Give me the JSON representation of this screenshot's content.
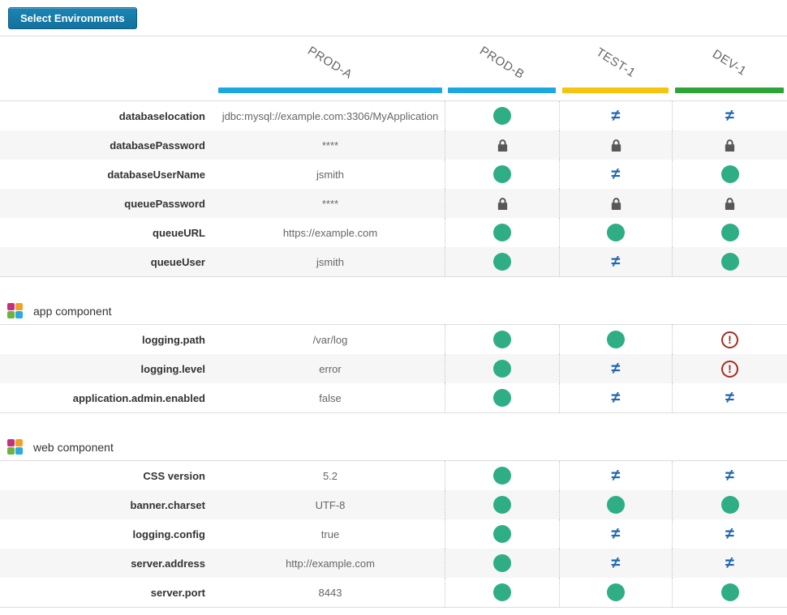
{
  "toolbar": {
    "select_environments_label": "Select Environments"
  },
  "environments": [
    {
      "name": "PROD-A",
      "bar_color": "#1ba7e3",
      "role": "baseline-with-values"
    },
    {
      "name": "PROD-B",
      "bar_color": "#1ba7e3",
      "role": "comparison"
    },
    {
      "name": "TEST-1",
      "bar_color": "#f6c40a",
      "role": "comparison"
    },
    {
      "name": "DEV-1",
      "bar_color": "#2ea336",
      "role": "comparison"
    }
  ],
  "status_icons": {
    "equal": {
      "meaning": "values match",
      "color": "#2fae85",
      "symbol": ""
    },
    "not_equal": {
      "meaning": "values differ",
      "color": "#2166b2",
      "symbol": "≠"
    },
    "locked": {
      "meaning": "secured value",
      "color": "#575757",
      "symbol": "lock"
    },
    "warning": {
      "meaning": "missing / attention",
      "color": "#a92a1e",
      "symbol": "!"
    }
  },
  "sections": [
    {
      "title": "",
      "rows": [
        {
          "property": "databaselocation",
          "prod_a_value": "jdbc:mysql://example.com:3306/MyApplication",
          "statuses": [
            "equal",
            "not_equal",
            "not_equal"
          ]
        },
        {
          "property": "databasePassword",
          "prod_a_value": "****",
          "statuses": [
            "locked",
            "locked",
            "locked"
          ]
        },
        {
          "property": "databaseUserName",
          "prod_a_value": "jsmith",
          "statuses": [
            "equal",
            "not_equal",
            "equal"
          ]
        },
        {
          "property": "queuePassword",
          "prod_a_value": "****",
          "statuses": [
            "locked",
            "locked",
            "locked"
          ]
        },
        {
          "property": "queueURL",
          "prod_a_value": "https://example.com",
          "statuses": [
            "equal",
            "equal",
            "equal"
          ]
        },
        {
          "property": "queueUser",
          "prod_a_value": "jsmith",
          "statuses": [
            "equal",
            "not_equal",
            "equal"
          ]
        }
      ]
    },
    {
      "title": "app component",
      "rows": [
        {
          "property": "logging.path",
          "prod_a_value": "/var/log",
          "statuses": [
            "equal",
            "equal",
            "warning"
          ]
        },
        {
          "property": "logging.level",
          "prod_a_value": "error",
          "statuses": [
            "equal",
            "not_equal",
            "warning"
          ]
        },
        {
          "property": "application.admin.enabled",
          "prod_a_value": "false",
          "statuses": [
            "equal",
            "not_equal",
            "not_equal"
          ]
        }
      ]
    },
    {
      "title": "web component",
      "rows": [
        {
          "property": "CSS version",
          "prod_a_value": "5.2",
          "statuses": [
            "equal",
            "not_equal",
            "not_equal"
          ]
        },
        {
          "property": "banner.charset",
          "prod_a_value": "UTF-8",
          "statuses": [
            "equal",
            "equal",
            "equal"
          ]
        },
        {
          "property": "logging.config",
          "prod_a_value": "true",
          "statuses": [
            "equal",
            "not_equal",
            "not_equal"
          ]
        },
        {
          "property": "server.address",
          "prod_a_value": "http://example.com",
          "statuses": [
            "equal",
            "not_equal",
            "not_equal"
          ]
        },
        {
          "property": "server.port",
          "prod_a_value": "8443",
          "statuses": [
            "equal",
            "equal",
            "equal"
          ]
        }
      ]
    }
  ]
}
